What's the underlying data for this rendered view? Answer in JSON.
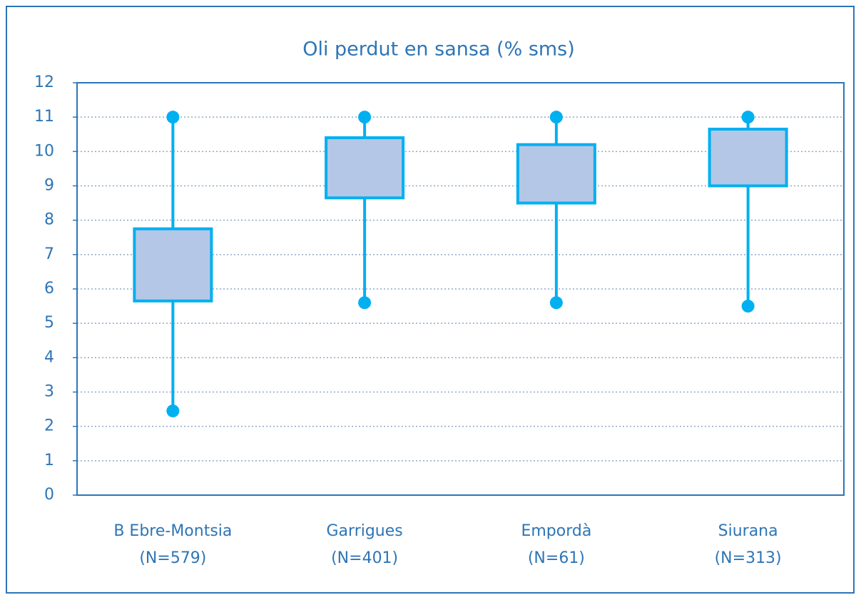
{
  "chart_data": {
    "type": "box",
    "title": "Oli perdut en sansa (% sms)",
    "categories": [
      [
        "B Ebre-Montsia",
        "(N=579)"
      ],
      [
        "Garrigues",
        "(N=401)"
      ],
      [
        "Empordà",
        "(N=61)"
      ],
      [
        "Siurana",
        "(N=313)"
      ]
    ],
    "min": [
      2.45,
      5.6,
      5.6,
      5.5
    ],
    "q1": [
      5.65,
      8.65,
      8.5,
      9.0
    ],
    "q3": [
      7.75,
      10.4,
      10.2,
      10.65
    ],
    "max": [
      11,
      11,
      11,
      11
    ],
    "color": "#00b0f0",
    "box_fill": "#b4c7e7",
    "ylim": [
      0,
      12
    ],
    "yticks": [
      0,
      1,
      2,
      3,
      4,
      5,
      6,
      7,
      8,
      9,
      10,
      11,
      12
    ],
    "grid": true
  }
}
